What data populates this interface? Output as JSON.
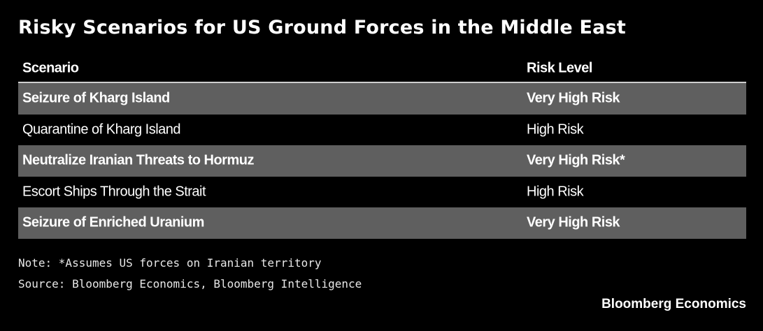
{
  "chart_data": {
    "type": "table",
    "title": "Risky Scenarios for US Ground Forces in the Middle East",
    "columns": [
      "Scenario",
      "Risk Level"
    ],
    "rows": [
      {
        "scenario": "Seizure of Kharg Island",
        "risk": "Very High Risk"
      },
      {
        "scenario": "Quarantine of Kharg Island",
        "risk": "High Risk"
      },
      {
        "scenario": "Neutralize Iranian Threats to Hormuz",
        "risk": "Very High Risk*"
      },
      {
        "scenario": "Escort Ships Through the Strait",
        "risk": "High Risk"
      },
      {
        "scenario": "Seizure of Enriched Uranium",
        "risk": "Very High Risk"
      }
    ],
    "note": "Note: *Assumes US forces on Iranian territory",
    "source": "Source: Bloomberg Economics, Bloomberg Intelligence",
    "brand": "Bloomberg Economics"
  },
  "colors": {
    "background": "#000000",
    "shaded_row": "#5f5f5f",
    "text": "#ffffff",
    "header_rule": "#cfcfcf"
  }
}
